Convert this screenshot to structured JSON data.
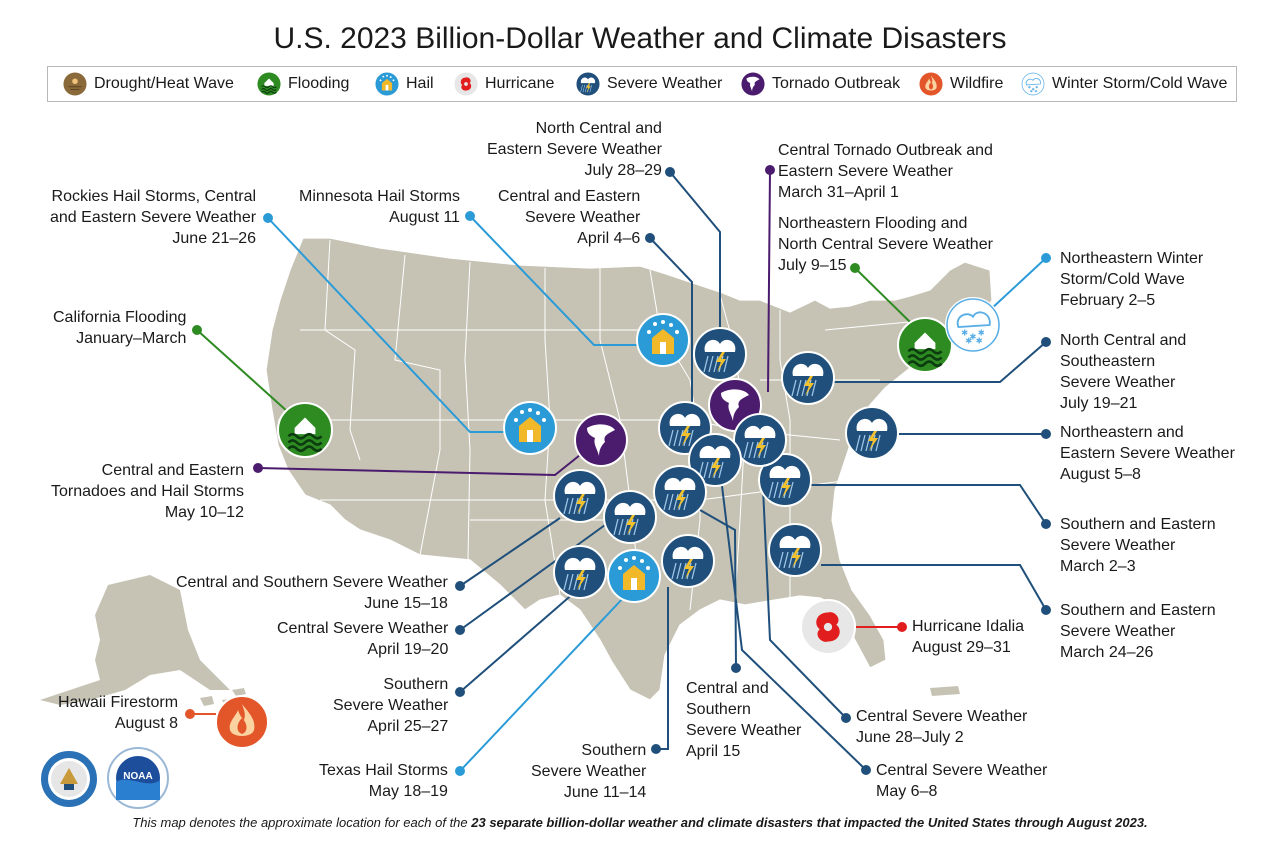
{
  "title": "U.S. 2023 Billion-Dollar Weather and Climate Disasters",
  "legend": [
    {
      "key": "drought",
      "label": "Drought/Heat Wave"
    },
    {
      "key": "flooding",
      "label": "Flooding"
    },
    {
      "key": "hail",
      "label": "Hail"
    },
    {
      "key": "hurricane",
      "label": "Hurricane"
    },
    {
      "key": "severe",
      "label": "Severe Weather"
    },
    {
      "key": "tornado",
      "label": "Tornado Outbreak"
    },
    {
      "key": "wildfire",
      "label": "Wildfire"
    },
    {
      "key": "winter",
      "label": "Winter Storm/Cold Wave"
    }
  ],
  "colors": {
    "land": "#c6c3b5",
    "border": "#ffffff",
    "severe": "#1f4f7a",
    "flooding": "#2e8b22",
    "hail": "#2b9bd8",
    "tornado": "#4b1b6e",
    "wildfire": "#e2562a",
    "hurricane": "#e11d1d",
    "winter": "#5aaee6",
    "drought": "#8a6a3a"
  },
  "events": [
    {
      "id": "rockies-hail",
      "type": "hail",
      "lines": [
        "Rockies Hail Storms, Central",
        "and Eastern Severe Weather",
        "June 21–26"
      ]
    },
    {
      "id": "minnesota-hail",
      "type": "hail",
      "lines": [
        "Minnesota Hail Storms",
        "August 11"
      ]
    },
    {
      "id": "ne-central-severe-jul",
      "type": "severe",
      "lines": [
        "North Central and",
        "Eastern Severe Weather",
        "July 28–29"
      ]
    },
    {
      "id": "central-eastern-apr4",
      "type": "severe",
      "lines": [
        "Central and Eastern",
        "Severe Weather",
        "April 4–6"
      ]
    },
    {
      "id": "tornado-outbreak-mar31",
      "type": "tornado",
      "lines": [
        "Central Tornado Outbreak and",
        "Eastern Severe Weather",
        "March 31–April 1"
      ]
    },
    {
      "id": "ne-flooding",
      "type": "flooding",
      "lines": [
        "Northeastern Flooding and",
        "North Central Severe Weather",
        "July 9–15"
      ]
    },
    {
      "id": "ne-winter",
      "type": "winter",
      "lines": [
        "Northeastern Winter",
        "Storm/Cold Wave",
        "February 2–5"
      ]
    },
    {
      "id": "nc-se-severe",
      "type": "severe",
      "lines": [
        "North Central and",
        "Southeastern",
        "Severe Weather",
        "July 19–21"
      ]
    },
    {
      "id": "ne-severe-aug",
      "type": "severe",
      "lines": [
        "Northeastern and",
        "Eastern Severe Weather",
        "August 5–8"
      ]
    },
    {
      "id": "s-e-severe-mar2",
      "type": "severe",
      "lines": [
        "Southern and Eastern",
        "Severe Weather",
        "March 2–3"
      ]
    },
    {
      "id": "s-e-severe-mar24",
      "type": "severe",
      "lines": [
        "Southern and Eastern",
        "Severe Weather",
        "March 24–26"
      ]
    },
    {
      "id": "hurricane-idalia",
      "type": "hurricane",
      "lines": [
        "Hurricane Idalia",
        "August 29–31"
      ]
    },
    {
      "id": "central-severe-jun28",
      "type": "severe",
      "lines": [
        "Central Severe Weather",
        "June 28–July 2"
      ]
    },
    {
      "id": "central-severe-may6",
      "type": "severe",
      "lines": [
        "Central Severe Weather",
        "May 6–8"
      ]
    },
    {
      "id": "central-southern-apr15",
      "type": "severe",
      "lines": [
        "Central and",
        "Southern",
        "Severe Weather",
        "April 15"
      ]
    },
    {
      "id": "southern-jun11",
      "type": "severe",
      "lines": [
        "Southern",
        "Severe Weather",
        "June 11–14"
      ]
    },
    {
      "id": "texas-hail",
      "type": "hail",
      "lines": [
        "Texas Hail Storms",
        "May 18–19"
      ]
    },
    {
      "id": "southern-apr25",
      "type": "severe",
      "lines": [
        "Southern",
        "Severe Weather",
        "April 25–27"
      ]
    },
    {
      "id": "central-severe-apr19",
      "type": "severe",
      "lines": [
        "Central Severe Weather",
        "April 19–20"
      ]
    },
    {
      "id": "central-southern-jun15",
      "type": "severe",
      "lines": [
        "Central and Southern Severe Weather",
        "June 15–18"
      ]
    },
    {
      "id": "central-eastern-tornadoes",
      "type": "tornado",
      "lines": [
        "Central and Eastern",
        "Tornadoes and Hail Storms",
        "May 10–12"
      ]
    },
    {
      "id": "california-flooding",
      "type": "flooding",
      "lines": [
        "California Flooding",
        "January–March"
      ]
    },
    {
      "id": "hawaii-firestorm",
      "type": "wildfire",
      "lines": [
        "Hawaii Firestorm",
        "August 8"
      ]
    }
  ],
  "footer": {
    "pre": "This map denotes the approximate location for each of the ",
    "bold": "23 separate billion-dollar weather and climate disasters that impacted the United States through August 2023.",
    "post": ""
  },
  "seals": [
    {
      "name": "commerce-seal"
    },
    {
      "name": "noaa-logo",
      "text": "NOAA"
    }
  ]
}
